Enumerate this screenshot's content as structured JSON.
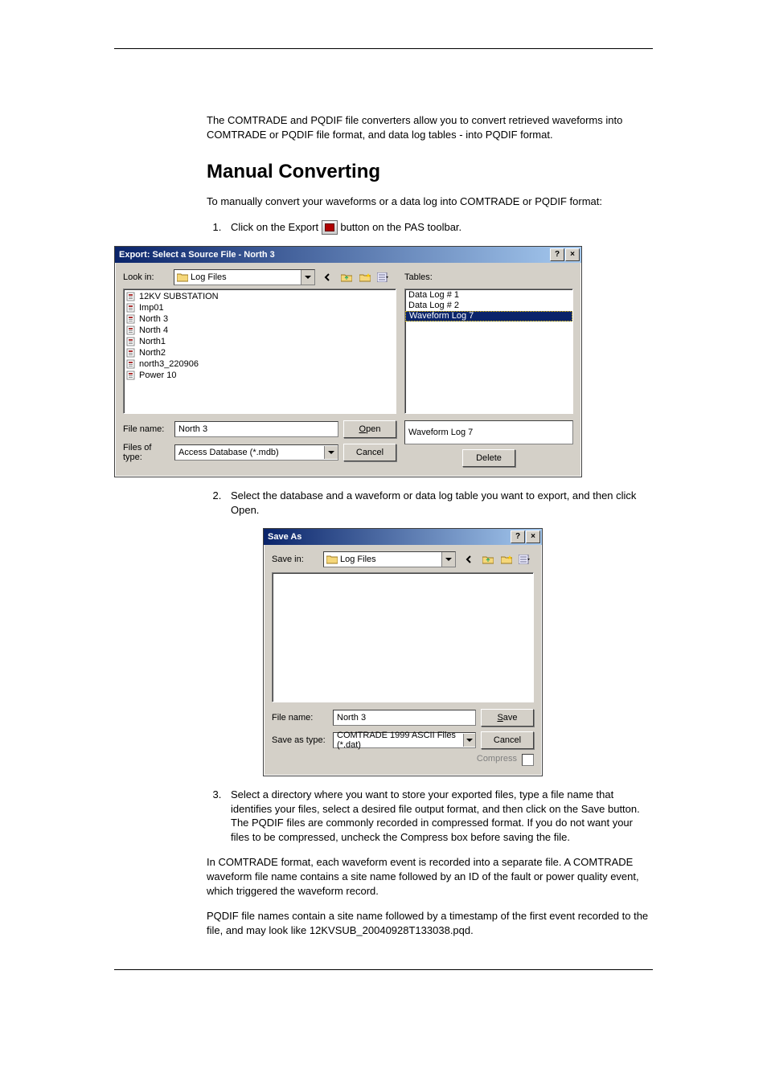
{
  "intro_text": "The COMTRADE and PQDIF file converters allow you to convert retrieved waveforms into COMTRADE or PQDIF file format, and data log tables - into PQDIF format.",
  "heading": "Manual Converting",
  "para_before_steps": "To manually convert your waveforms or a data log into COMTRADE or PQDIF format:",
  "step1_before": "Click on the Export ",
  "step1_after": " button on the PAS toolbar.",
  "step2": "Select the database and a waveform or data log table you want to export, and then click Open.",
  "step3": "Select a directory where you want to store your exported files, type a file name that identifies your files, select a desired file output format, and then click on the Save button. The PQDIF files are commonly recorded in compressed format. If you do not want your files to be compressed, uncheck the Compress box before saving the file.",
  "para_comtrade": "In COMTRADE format, each waveform event is recorded into a separate file. A COMTRADE waveform file name contains a site name followed by an ID of the fault or power quality event, which triggered the waveform record.",
  "para_pqdif": "PQDIF file names contain a site name followed by a timestamp of the first event recorded to the file, and may look like 12KVSUB_20040928T133038.pqd.",
  "export": {
    "title": "Export: Select a Source File - North 3",
    "lookin_label": "Look in:",
    "lookin_value": "Log Files",
    "tables_label": "Tables:",
    "files": [
      "12KV SUBSTATION",
      "Imp01",
      "North 3",
      "North 4",
      "North1",
      "North2",
      "north3_220906",
      "Power 10"
    ],
    "tables": [
      "Data Log # 1",
      "Data Log # 2",
      "Waveform Log 7"
    ],
    "selected_table_index": 2,
    "filename_label": "File name:",
    "filename_value": "North 3",
    "filestype_label": "Files of type:",
    "filestype_value": "Access Database (*.mdb)",
    "open_btn": "Open",
    "cancel_btn": "Cancel",
    "delete_btn": "Delete",
    "selected_table_value": "Waveform Log 7"
  },
  "save": {
    "title": "Save As",
    "savein_label": "Save in:",
    "savein_value": "Log Files",
    "filename_label": "File name:",
    "filename_value": "North 3",
    "saveastype_label": "Save as type:",
    "saveastype_value": "COMTRADE 1999 ASCII Files (*.dat)",
    "save_btn": "Save",
    "cancel_btn": "Cancel",
    "compress_label": "Compress"
  },
  "colors": {
    "dialog_bg": "#d4d0c8",
    "title_grad_start": "#0a246a",
    "title_grad_end": "#a6caf0",
    "selection_bg": "#0a246a",
    "selection_border": "#ffcc00"
  }
}
